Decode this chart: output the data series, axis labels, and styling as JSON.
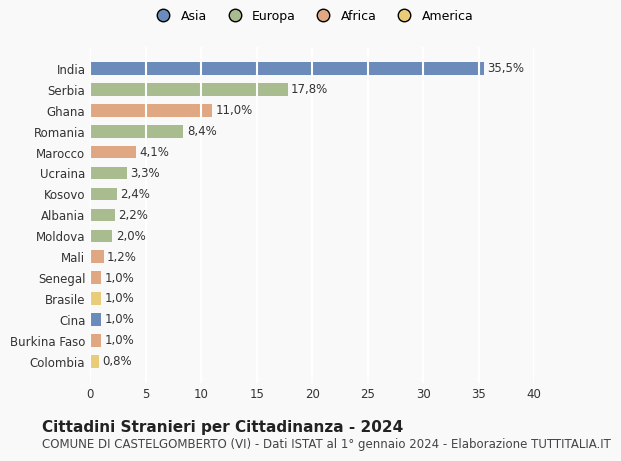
{
  "countries": [
    "India",
    "Serbia",
    "Ghana",
    "Romania",
    "Marocco",
    "Ucraina",
    "Kosovo",
    "Albania",
    "Moldova",
    "Mali",
    "Senegal",
    "Brasile",
    "Cina",
    "Burkina Faso",
    "Colombia"
  ],
  "values": [
    35.5,
    17.8,
    11.0,
    8.4,
    4.1,
    3.3,
    2.4,
    2.2,
    2.0,
    1.2,
    1.0,
    1.0,
    1.0,
    1.0,
    0.8
  ],
  "labels": [
    "35,5%",
    "17,8%",
    "11,0%",
    "8,4%",
    "4,1%",
    "3,3%",
    "2,4%",
    "2,2%",
    "2,0%",
    "1,2%",
    "1,0%",
    "1,0%",
    "1,0%",
    "1,0%",
    "0,8%"
  ],
  "continents": [
    "Asia",
    "Europa",
    "Africa",
    "Europa",
    "Africa",
    "Europa",
    "Europa",
    "Europa",
    "Europa",
    "Africa",
    "Africa",
    "America",
    "Asia",
    "Africa",
    "America"
  ],
  "colors": {
    "Asia": "#6b8cba",
    "Europa": "#a8bc8f",
    "Africa": "#e0a882",
    "America": "#e8cc7a"
  },
  "legend_order": [
    "Asia",
    "Europa",
    "Africa",
    "America"
  ],
  "xlim": [
    0,
    40
  ],
  "xticks": [
    0,
    5,
    10,
    15,
    20,
    25,
    30,
    35,
    40
  ],
  "title": "Cittadini Stranieri per Cittadinanza - 2024",
  "subtitle": "COMUNE DI CASTELGOMBERTO (VI) - Dati ISTAT al 1° gennaio 2024 - Elaborazione TUTTITALIA.IT",
  "background_color": "#f9f9f9",
  "grid_color": "#ffffff",
  "bar_height": 0.6,
  "title_fontsize": 11,
  "subtitle_fontsize": 8.5,
  "label_fontsize": 8.5,
  "tick_fontsize": 8.5,
  "legend_fontsize": 9
}
